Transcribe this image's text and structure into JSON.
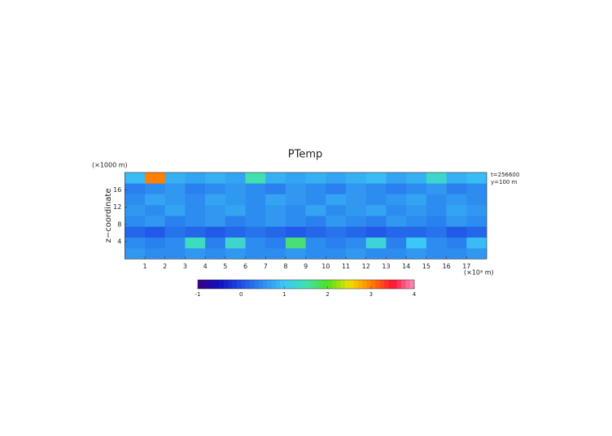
{
  "chart_data": {
    "type": "heatmap",
    "title": "PTemp",
    "ylabel": "z−coordinate",
    "yunit": "(×1000 m)",
    "xunit": "(×10⁴ m)",
    "annotations": [
      "t=256600",
      "y=100 m"
    ],
    "x": [
      0,
      1,
      2,
      3,
      4,
      5,
      6,
      7,
      8,
      9,
      10,
      11,
      12,
      13,
      14,
      15,
      16,
      17,
      18
    ],
    "y": [
      0,
      2.5,
      5,
      7.5,
      10,
      12.5,
      15,
      17.5,
      20
    ],
    "z": [
      [
        0.6,
        0.5,
        0.5,
        0.6,
        0.5,
        0.6,
        0.5,
        0.5,
        0.6,
        0.5,
        0.5,
        0.6,
        0.5,
        0.5,
        0.6,
        0.5,
        0.5,
        0.6
      ],
      [
        0.5,
        0.4,
        0.5,
        1.4,
        0.4,
        1.3,
        0.5,
        0.4,
        1.7,
        0.5,
        0.4,
        0.5,
        1.2,
        0.4,
        1.0,
        0.5,
        0.4,
        0.9
      ],
      [
        0.2,
        0.1,
        0.3,
        0.2,
        0.1,
        0.2,
        0.3,
        0.2,
        0.1,
        0.2,
        0.3,
        0.2,
        0.1,
        0.2,
        0.2,
        0.3,
        0.1,
        0.2
      ],
      [
        0.5,
        0.6,
        0.4,
        0.5,
        0.6,
        0.4,
        0.5,
        0.6,
        0.5,
        0.4,
        0.6,
        0.5,
        0.4,
        0.6,
        0.5,
        0.4,
        0.6,
        0.5
      ],
      [
        0.6,
        0.5,
        0.7,
        0.5,
        0.6,
        0.7,
        0.5,
        0.6,
        0.5,
        0.7,
        0.5,
        0.6,
        0.7,
        0.5,
        0.6,
        0.5,
        0.7,
        0.6
      ],
      [
        0.5,
        0.7,
        0.6,
        0.5,
        0.7,
        0.6,
        0.5,
        0.7,
        0.6,
        0.5,
        0.7,
        0.6,
        0.5,
        0.6,
        0.7,
        0.5,
        0.6,
        0.5
      ],
      [
        0.4,
        0.5,
        0.6,
        0.4,
        0.5,
        0.6,
        0.5,
        0.4,
        0.6,
        0.5,
        0.4,
        0.6,
        0.5,
        0.4,
        0.5,
        0.6,
        0.4,
        0.5
      ],
      [
        0.9,
        3.0,
        0.8,
        0.7,
        0.8,
        0.7,
        1.5,
        0.8,
        0.7,
        0.8,
        0.7,
        0.8,
        0.9,
        0.7,
        0.8,
        1.3,
        0.8,
        0.9
      ]
    ],
    "xlim": [
      0,
      18
    ],
    "xticks": [
      1,
      2,
      3,
      4,
      5,
      6,
      7,
      8,
      9,
      10,
      11,
      12,
      13,
      14,
      15,
      16,
      17
    ],
    "ylim": [
      0,
      20
    ],
    "yticks": [
      4,
      8,
      12,
      16
    ],
    "clim": [
      -1,
      4
    ],
    "cticks": [
      -1,
      0,
      1,
      2,
      3,
      4
    ],
    "colormap": [
      "#3a0080",
      "#1010c0",
      "#1e4ee6",
      "#2d8cf0",
      "#3cc8f5",
      "#40e0b0",
      "#50e020",
      "#f0e000",
      "#ff8000",
      "#ff1030",
      "#ff90c0"
    ]
  }
}
